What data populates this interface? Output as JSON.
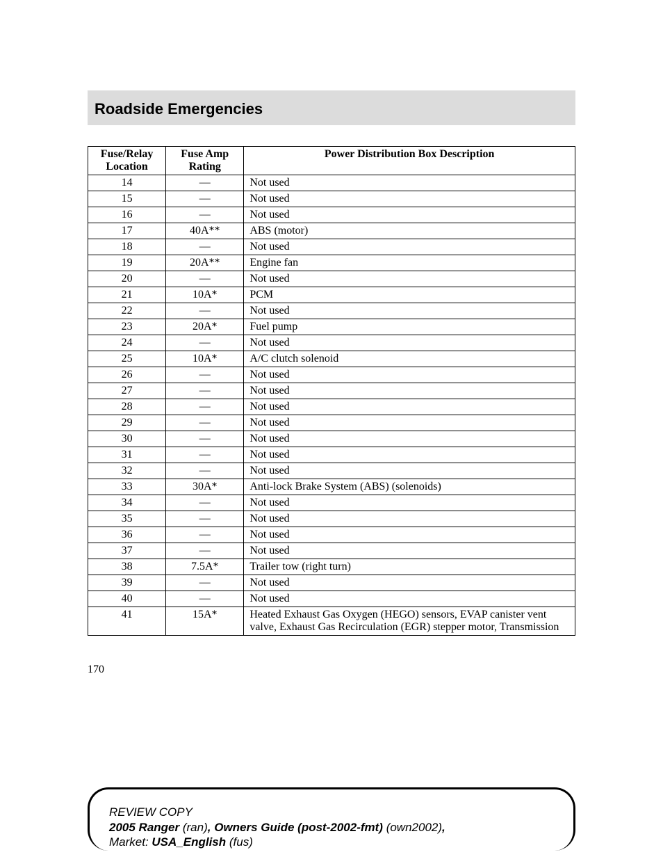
{
  "colors": {
    "header_bg": "#dcdcdc",
    "text": "#000000",
    "border": "#000000",
    "page_bg": "#ffffff"
  },
  "typography": {
    "body_family": "Times New Roman",
    "header_family": "Arial",
    "header_fontsize": 22,
    "table_fontsize": 16
  },
  "header": {
    "title": "Roadside Emergencies"
  },
  "table": {
    "col_widths_pct": [
      16,
      16,
      68
    ],
    "headers": {
      "loc": "Fuse/Relay Location",
      "amp": "Fuse Amp Rating",
      "desc": "Power Distribution Box Description"
    },
    "rows": [
      {
        "loc": "14",
        "amp": "—",
        "desc": "Not used"
      },
      {
        "loc": "15",
        "amp": "—",
        "desc": "Not used"
      },
      {
        "loc": "16",
        "amp": "—",
        "desc": "Not used"
      },
      {
        "loc": "17",
        "amp": "40A**",
        "desc": "ABS (motor)"
      },
      {
        "loc": "18",
        "amp": "—",
        "desc": "Not used"
      },
      {
        "loc": "19",
        "amp": "20A**",
        "desc": "Engine fan"
      },
      {
        "loc": "20",
        "amp": "—",
        "desc": "Not used"
      },
      {
        "loc": "21",
        "amp": "10A*",
        "desc": "PCM"
      },
      {
        "loc": "22",
        "amp": "—",
        "desc": "Not used"
      },
      {
        "loc": "23",
        "amp": "20A*",
        "desc": "Fuel pump"
      },
      {
        "loc": "24",
        "amp": "—",
        "desc": "Not used"
      },
      {
        "loc": "25",
        "amp": "10A*",
        "desc": "A/C clutch solenoid"
      },
      {
        "loc": "26",
        "amp": "—",
        "desc": "Not used"
      },
      {
        "loc": "27",
        "amp": "—",
        "desc": "Not used"
      },
      {
        "loc": "28",
        "amp": "—",
        "desc": "Not used"
      },
      {
        "loc": "29",
        "amp": "—",
        "desc": "Not used"
      },
      {
        "loc": "30",
        "amp": "—",
        "desc": "Not used"
      },
      {
        "loc": "31",
        "amp": "—",
        "desc": "Not used"
      },
      {
        "loc": "32",
        "amp": "—",
        "desc": "Not used"
      },
      {
        "loc": "33",
        "amp": "30A*",
        "desc": "Anti-lock Brake System (ABS) (solenoids)"
      },
      {
        "loc": "34",
        "amp": "—",
        "desc": "Not used"
      },
      {
        "loc": "35",
        "amp": "—",
        "desc": "Not used"
      },
      {
        "loc": "36",
        "amp": "—",
        "desc": "Not used"
      },
      {
        "loc": "37",
        "amp": "—",
        "desc": "Not used"
      },
      {
        "loc": "38",
        "amp": "7.5A*",
        "desc": "Trailer tow (right turn)"
      },
      {
        "loc": "39",
        "amp": "—",
        "desc": "Not used"
      },
      {
        "loc": "40",
        "amp": "—",
        "desc": "Not used"
      },
      {
        "loc": "41",
        "amp": "15A*",
        "desc": "Heated Exhaust Gas Oxygen (HEGO) sensors, EVAP canister vent valve, Exhaust Gas Recirculation (EGR) stepper motor, Transmission"
      }
    ]
  },
  "page_number": "170",
  "footer": {
    "review": "REVIEW COPY",
    "model_bold": "2005 Ranger",
    "model_code": " (ran)",
    "sep1": ", ",
    "guide_bold": "Owners Guide (post-2002-fmt)",
    "guide_code": " (own2002)",
    "sep2": ",",
    "market_label": "Market: ",
    "market_bold": " USA_English",
    "market_code": " (fus)"
  }
}
